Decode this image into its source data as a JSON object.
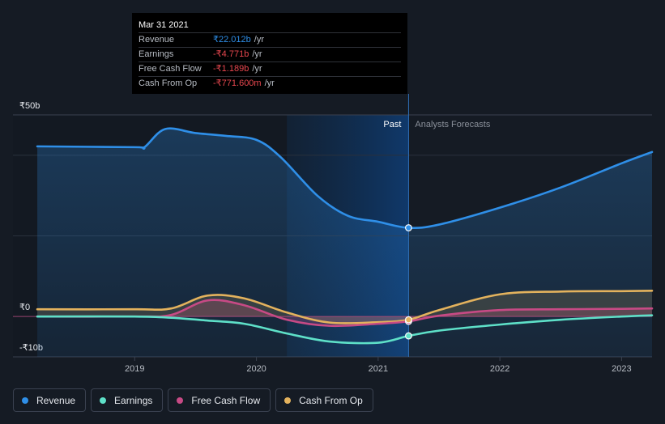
{
  "tooltip": {
    "date": "Mar 31 2021",
    "rows": [
      {
        "label": "Revenue",
        "value": "₹22.012b",
        "suffix": "/yr",
        "color": "#2f8fe8"
      },
      {
        "label": "Earnings",
        "value": "-₹4.771b",
        "suffix": "/yr",
        "color": "#e8474f"
      },
      {
        "label": "Free Cash Flow",
        "value": "-₹1.189b",
        "suffix": "/yr",
        "color": "#e8474f"
      },
      {
        "label": "Cash From Op",
        "value": "-₹771.600m",
        "suffix": "/yr",
        "color": "#e8474f"
      }
    ]
  },
  "legend": [
    {
      "label": "Revenue",
      "color": "#2f8fe8"
    },
    {
      "label": "Earnings",
      "color": "#5ee0c8"
    },
    {
      "label": "Free Cash Flow",
      "color": "#c74a85"
    },
    {
      "label": "Cash From Op",
      "color": "#e3b25d"
    }
  ],
  "chart_data": {
    "type": "line",
    "title": "",
    "currency_axis_labels": [
      "₹50b",
      "₹0",
      "-₹10b"
    ],
    "ylim": [
      -10,
      50
    ],
    "x_ticks": [
      {
        "label": "2019",
        "x": 2019.0
      },
      {
        "label": "2020",
        "x": 2020.0
      },
      {
        "label": "2021",
        "x": 2021.0
      },
      {
        "label": "2022",
        "x": 2022.0
      },
      {
        "label": "2023",
        "x": 2023.0
      }
    ],
    "xlim": [
      2018.0,
      2023.25
    ],
    "past_label": "Past",
    "forecast_label": "Analysts Forecasts",
    "past_region": [
      2020.25,
      2021.25
    ],
    "highlight_x": 2021.25,
    "series": [
      {
        "name": "Revenue",
        "color": "#2f8fe8",
        "fill": true,
        "points": [
          [
            2018.2,
            42.2
          ],
          [
            2019.0,
            42.0
          ],
          [
            2019.08,
            42.0
          ],
          [
            2019.25,
            46.5
          ],
          [
            2019.5,
            45.5
          ],
          [
            2019.75,
            44.8
          ],
          [
            2020.0,
            43.8
          ],
          [
            2020.2,
            39.5
          ],
          [
            2020.5,
            30.0
          ],
          [
            2020.75,
            25.0
          ],
          [
            2021.0,
            23.5
          ],
          [
            2021.25,
            22.0
          ],
          [
            2021.5,
            22.8
          ],
          [
            2022.0,
            27.0
          ],
          [
            2022.5,
            32.0
          ],
          [
            2023.0,
            38.0
          ],
          [
            2023.25,
            40.8
          ]
        ]
      },
      {
        "name": "Earnings",
        "color": "#5ee0c8",
        "fill": false,
        "points": [
          [
            2018.2,
            0.0
          ],
          [
            2019.0,
            0.0
          ],
          [
            2019.3,
            -0.3
          ],
          [
            2019.6,
            -1.0
          ],
          [
            2019.9,
            -1.8
          ],
          [
            2020.25,
            -4.2
          ],
          [
            2020.6,
            -6.2
          ],
          [
            2021.0,
            -6.5
          ],
          [
            2021.25,
            -4.8
          ],
          [
            2021.5,
            -3.5
          ],
          [
            2022.0,
            -2.0
          ],
          [
            2022.5,
            -0.8
          ],
          [
            2023.0,
            0.0
          ],
          [
            2023.25,
            0.3
          ]
        ]
      },
      {
        "name": "Free Cash Flow",
        "color": "#c74a85",
        "fill": true,
        "points": [
          [
            2018.2,
            0.0
          ],
          [
            2019.0,
            0.0
          ],
          [
            2019.3,
            0.4
          ],
          [
            2019.6,
            4.0
          ],
          [
            2019.9,
            2.8
          ],
          [
            2020.25,
            -0.8
          ],
          [
            2020.6,
            -2.3
          ],
          [
            2021.0,
            -1.8
          ],
          [
            2021.25,
            -1.2
          ],
          [
            2021.5,
            0.2
          ],
          [
            2022.0,
            1.6
          ],
          [
            2022.5,
            1.8
          ],
          [
            2023.0,
            1.9
          ],
          [
            2023.25,
            2.0
          ]
        ]
      },
      {
        "name": "Cash From Op",
        "color": "#e3b25d",
        "fill": true,
        "points": [
          [
            2018.2,
            1.8
          ],
          [
            2019.0,
            1.8
          ],
          [
            2019.3,
            2.0
          ],
          [
            2019.6,
            5.2
          ],
          [
            2019.9,
            4.5
          ],
          [
            2020.25,
            1.0
          ],
          [
            2020.6,
            -1.5
          ],
          [
            2021.0,
            -1.4
          ],
          [
            2021.25,
            -0.8
          ],
          [
            2021.5,
            1.6
          ],
          [
            2022.0,
            5.5
          ],
          [
            2022.5,
            6.2
          ],
          [
            2023.0,
            6.3
          ],
          [
            2023.25,
            6.4
          ]
        ]
      }
    ]
  }
}
